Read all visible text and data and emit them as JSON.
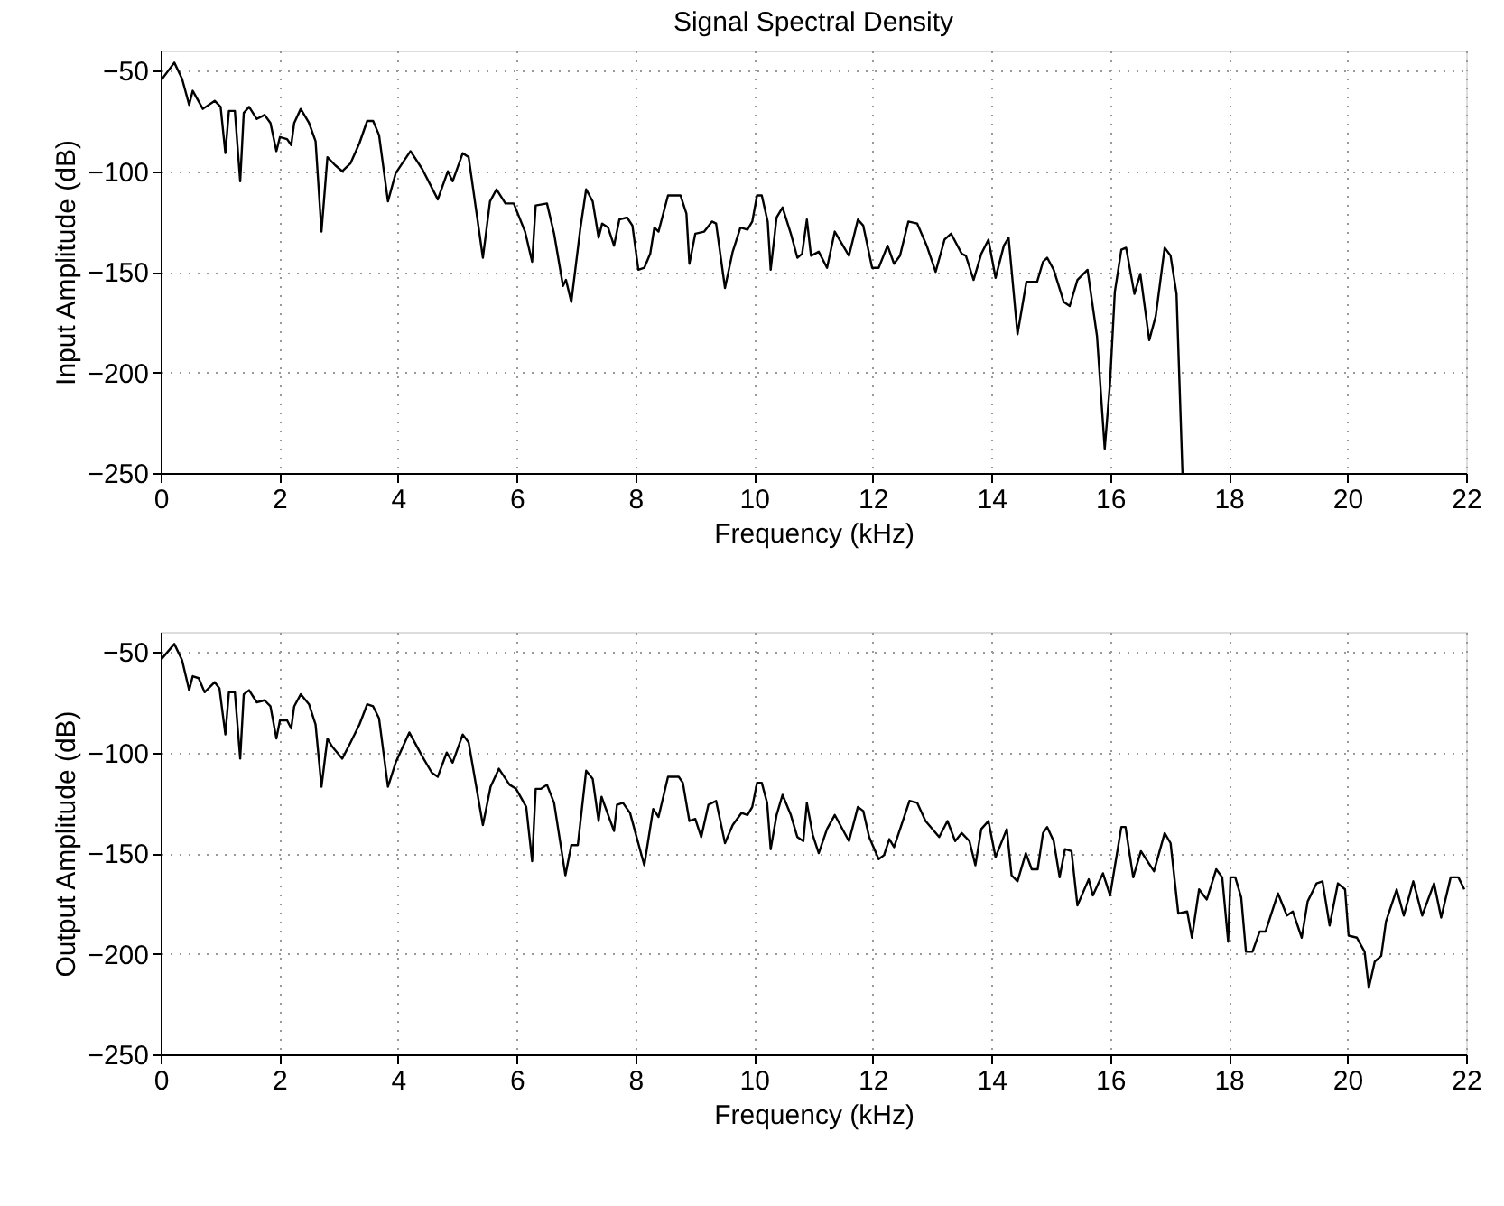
{
  "chart_data": [
    {
      "type": "line",
      "title": "Signal Spectral Density",
      "xlabel": "Frequency (kHz)",
      "ylabel": "Input Amplitude (dB)",
      "xlim": [
        0,
        22
      ],
      "xticks": [
        0,
        2,
        4,
        6,
        8,
        10,
        12,
        14,
        16,
        18,
        20,
        22
      ],
      "ylim": [
        -250,
        -40
      ],
      "yticks": [
        -250,
        -200,
        -150,
        -100,
        -50
      ],
      "grid": true,
      "line_style": "solid",
      "series": [
        {
          "color": "#000000",
          "x": [
            0,
            0.23,
            0.36,
            0.48,
            0.54,
            0.71,
            0.91,
            1.01,
            1.09,
            1.15,
            1.25,
            1.34,
            1.4,
            1.49,
            1.62,
            1.75,
            1.85,
            1.95,
            2.01,
            2.13,
            2.2,
            2.25,
            2.36,
            2.5,
            2.61,
            2.71,
            2.81,
            2.94,
            3.06,
            3.2,
            3.35,
            3.48,
            3.58,
            3.68,
            3.83,
            3.96,
            4.21,
            4.41,
            4.67,
            4.84,
            4.92,
            5.09,
            5.19,
            5.43,
            5.55,
            5.66,
            5.81,
            5.95,
            6.14,
            6.26,
            6.32,
            6.51,
            6.63,
            6.78,
            6.83,
            6.92,
            7.07,
            7.17,
            7.28,
            7.38,
            7.44,
            7.54,
            7.64,
            7.73,
            7.86,
            7.95,
            8.05,
            8.15,
            8.25,
            8.32,
            8.39,
            8.55,
            8.76,
            8.86,
            8.91,
            9.01,
            9.16,
            9.29,
            9.36,
            9.51,
            9.64,
            9.77,
            9.89,
            9.97,
            10.05,
            10.13,
            10.23,
            10.28,
            10.38,
            10.48,
            10.62,
            10.73,
            10.81,
            10.89,
            10.96,
            11.09,
            11.23,
            11.36,
            11.6,
            11.75,
            11.84,
            11.99,
            12.1,
            12.25,
            12.36,
            12.46,
            12.6,
            12.75,
            12.91,
            13.06,
            13.21,
            13.32,
            13.5,
            13.57,
            13.7,
            13.83,
            13.95,
            14.07,
            14.21,
            14.29,
            14.44,
            14.59,
            14.77,
            14.87,
            14.94,
            15.05,
            15.22,
            15.32,
            15.45,
            15.62,
            15.78,
            15.91,
            16.0,
            16.08,
            16.19,
            16.27,
            16.41,
            16.51,
            16.66,
            16.77,
            16.92,
            17.02,
            17.12,
            17.22
          ],
          "values": [
            -55,
            -46,
            -54,
            -67,
            -60,
            -69,
            -65,
            -68,
            -91,
            -70,
            -70,
            -105,
            -71,
            -68,
            -74,
            -72,
            -76,
            -90,
            -83,
            -84,
            -87,
            -76,
            -69,
            -76,
            -85,
            -130,
            -93,
            -97,
            -100,
            -96,
            -86,
            -75,
            -75,
            -82,
            -115,
            -101,
            -90,
            -99,
            -114,
            -100,
            -105,
            -91,
            -93,
            -143,
            -115,
            -109,
            -116,
            -116,
            -130,
            -145,
            -117,
            -116,
            -131,
            -157,
            -154,
            -165,
            -129,
            -109,
            -115,
            -133,
            -126,
            -128,
            -137,
            -124,
            -123,
            -127,
            -149,
            -148,
            -141,
            -128,
            -130,
            -112,
            -112,
            -121,
            -146,
            -131,
            -130,
            -125,
            -126,
            -158,
            -140,
            -128,
            -129,
            -125,
            -112,
            -112,
            -125,
            -149,
            -123,
            -118,
            -131,
            -143,
            -141,
            -124,
            -142,
            -140,
            -148,
            -130,
            -142,
            -124,
            -127,
            -148,
            -148,
            -137,
            -146,
            -142,
            -125,
            -126,
            -137,
            -150,
            -134,
            -131,
            -141,
            -142,
            -154,
            -141,
            -134,
            -153,
            -137,
            -133,
            -181,
            -155,
            -155,
            -145,
            -143,
            -149,
            -165,
            -167,
            -154,
            -149,
            -182,
            -238,
            -205,
            -160,
            -139,
            -138,
            -161,
            -151,
            -184,
            -172,
            -138,
            -142,
            -161,
            -250
          ]
        }
      ]
    },
    {
      "type": "line",
      "xlabel": "Frequency (kHz)",
      "ylabel": "Output Amplitude (dB)",
      "xlim": [
        0,
        22
      ],
      "xticks": [
        0,
        2,
        4,
        6,
        8,
        10,
        12,
        14,
        16,
        18,
        20,
        22
      ],
      "ylim": [
        -250,
        -40
      ],
      "yticks": [
        -250,
        -200,
        -150,
        -100,
        -50
      ],
      "grid": true,
      "line_style": "solid",
      "series": [
        {
          "color": "#000000",
          "x": [
            0,
            0.23,
            0.36,
            0.48,
            0.54,
            0.64,
            0.74,
            0.91,
            0.99,
            1.09,
            1.15,
            1.25,
            1.34,
            1.4,
            1.49,
            1.62,
            1.75,
            1.85,
            1.95,
            2.01,
            2.13,
            2.2,
            2.25,
            2.36,
            2.5,
            2.61,
            2.71,
            2.81,
            2.89,
            3.06,
            3.2,
            3.35,
            3.48,
            3.58,
            3.68,
            3.83,
            3.96,
            4.19,
            4.41,
            4.57,
            4.67,
            4.82,
            4.92,
            5.09,
            5.19,
            5.43,
            5.56,
            5.7,
            5.88,
            5.99,
            6.16,
            6.26,
            6.32,
            6.41,
            6.51,
            6.63,
            6.82,
            6.92,
            7.03,
            7.17,
            7.28,
            7.38,
            7.43,
            7.64,
            7.69,
            7.79,
            7.91,
            8.15,
            8.3,
            8.39,
            8.55,
            8.73,
            8.8,
            8.91,
            9.01,
            9.11,
            9.23,
            9.36,
            9.51,
            9.64,
            9.79,
            9.89,
            9.97,
            10.05,
            10.13,
            10.22,
            10.28,
            10.38,
            10.48,
            10.62,
            10.73,
            10.83,
            10.89,
            10.99,
            11.09,
            11.23,
            11.36,
            11.6,
            11.75,
            11.84,
            11.94,
            12.1,
            12.19,
            12.28,
            12.36,
            12.62,
            12.75,
            12.89,
            13.12,
            13.26,
            13.39,
            13.5,
            13.63,
            13.73,
            13.83,
            13.95,
            14.07,
            14.26,
            14.34,
            14.44,
            14.58,
            14.68,
            14.78,
            14.87,
            14.94,
            15.05,
            15.15,
            15.24,
            15.35,
            15.45,
            15.64,
            15.71,
            15.88,
            16.0,
            16.19,
            16.26,
            16.39,
            16.52,
            16.74,
            16.92,
            17.02,
            17.15,
            17.3,
            17.38,
            17.5,
            17.63,
            17.79,
            17.89,
            17.99,
            18.03,
            18.11,
            18.21,
            18.29,
            18.4,
            18.52,
            18.62,
            18.83,
            18.98,
            19.08,
            19.23,
            19.33,
            19.48,
            19.58,
            19.7,
            19.84,
            19.96,
            20.02,
            20.16,
            20.29,
            20.36,
            20.46,
            20.57,
            20.65,
            20.83,
            20.95,
            21.11,
            21.26,
            21.46,
            21.58,
            21.74,
            21.87,
            21.97
          ],
          "values": [
            -54,
            -46,
            -54,
            -69,
            -62,
            -63,
            -70,
            -65,
            -68,
            -91,
            -70,
            -70,
            -103,
            -71,
            -69,
            -75,
            -74,
            -77,
            -93,
            -84,
            -84,
            -88,
            -77,
            -71,
            -76,
            -86,
            -117,
            -93,
            -97,
            -103,
            -95,
            -86,
            -76,
            -77,
            -83,
            -117,
            -105,
            -90,
            -102,
            -110,
            -112,
            -100,
            -105,
            -91,
            -95,
            -136,
            -117,
            -108,
            -116,
            -118,
            -127,
            -154,
            -118,
            -118,
            -116,
            -125,
            -161,
            -146,
            -146,
            -109,
            -113,
            -134,
            -122,
            -139,
            -126,
            -125,
            -130,
            -156,
            -128,
            -132,
            -112,
            -112,
            -115,
            -134,
            -133,
            -142,
            -126,
            -124,
            -145,
            -136,
            -130,
            -131,
            -127,
            -115,
            -115,
            -125,
            -148,
            -131,
            -121,
            -131,
            -142,
            -144,
            -125,
            -141,
            -150,
            -138,
            -131,
            -144,
            -127,
            -129,
            -142,
            -153,
            -151,
            -143,
            -147,
            -124,
            -125,
            -134,
            -142,
            -134,
            -144,
            -140,
            -144,
            -156,
            -138,
            -134,
            -152,
            -138,
            -161,
            -164,
            -150,
            -158,
            -158,
            -140,
            -137,
            -144,
            -162,
            -148,
            -149,
            -176,
            -163,
            -171,
            -160,
            -171,
            -137,
            -137,
            -162,
            -149,
            -159,
            -140,
            -145,
            -180,
            -179,
            -192,
            -168,
            -173,
            -158,
            -162,
            -194,
            -162,
            -162,
            -172,
            -199,
            -199,
            -189,
            -189,
            -170,
            -181,
            -179,
            -192,
            -174,
            -165,
            -164,
            -186,
            -165,
            -168,
            -191,
            -192,
            -199,
            -217,
            -204,
            -201,
            -184,
            -168,
            -181,
            -164,
            -181,
            -165,
            -182,
            -162,
            -162,
            -168
          ]
        }
      ]
    }
  ]
}
